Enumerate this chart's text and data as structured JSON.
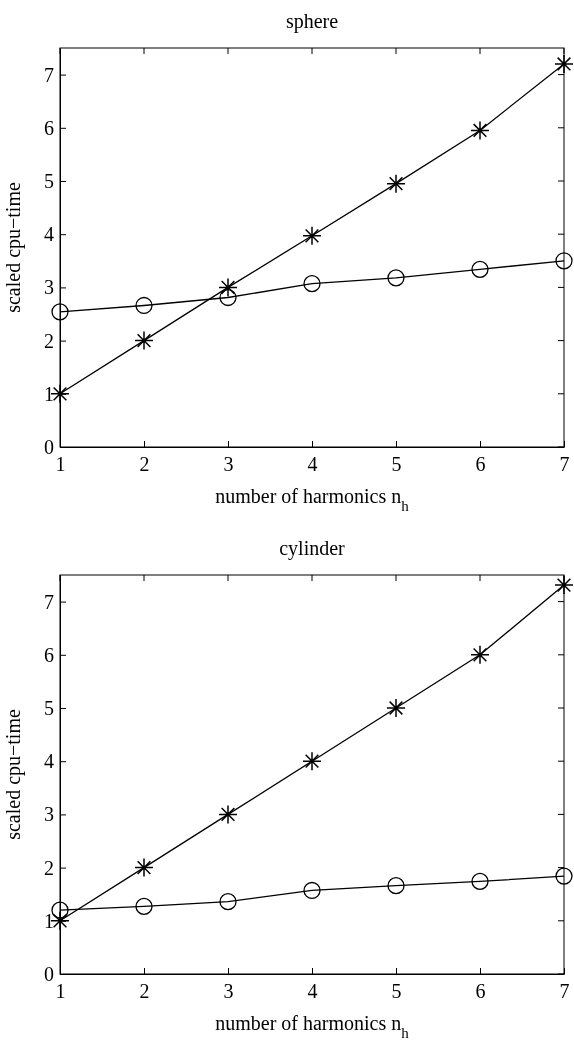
{
  "chart_data": [
    {
      "type": "line",
      "title": "sphere",
      "xlabel": "number of harmonics n$_{h}$",
      "ylabel": "scaled cpu−time",
      "x": [
        1,
        2,
        3,
        4,
        5,
        6,
        7
      ],
      "xlim": [
        1,
        7
      ],
      "xticks": [
        1,
        2,
        3,
        4,
        5,
        6,
        7
      ],
      "ylim": [
        0,
        7.5
      ],
      "yticks": [
        0,
        1,
        2,
        3,
        4,
        5,
        6,
        7
      ],
      "grid": false,
      "series": [
        {
          "color": "#000000",
          "marker": "cross",
          "values": [
            1,
            2,
            3,
            3.97,
            4.95,
            5.95,
            7.2
          ]
        },
        {
          "color": "#000000",
          "marker": "circle",
          "values": [
            2.54,
            2.66,
            2.81,
            3.07,
            3.18,
            3.34,
            3.5
          ]
        }
      ]
    },
    {
      "type": "line",
      "title": "cylinder",
      "xlabel": "number of harmonics n$_{h}$",
      "ylabel": "scaled cpu−time",
      "x": [
        1,
        2,
        3,
        4,
        5,
        6,
        7
      ],
      "xlim": [
        1,
        7
      ],
      "xticks": [
        1,
        2,
        3,
        4,
        5,
        6,
        7
      ],
      "ylim": [
        0,
        7.5
      ],
      "yticks": [
        0,
        1,
        2,
        3,
        4,
        5,
        6,
        7
      ],
      "grid": false,
      "series": [
        {
          "color": "#000000",
          "marker": "cross",
          "values": [
            1,
            2,
            3,
            4,
            5,
            6,
            7.31
          ]
        },
        {
          "color": "#000000",
          "marker": "circle",
          "values": [
            1.2,
            1.27,
            1.36,
            1.57,
            1.66,
            1.74,
            1.84
          ]
        }
      ]
    }
  ]
}
